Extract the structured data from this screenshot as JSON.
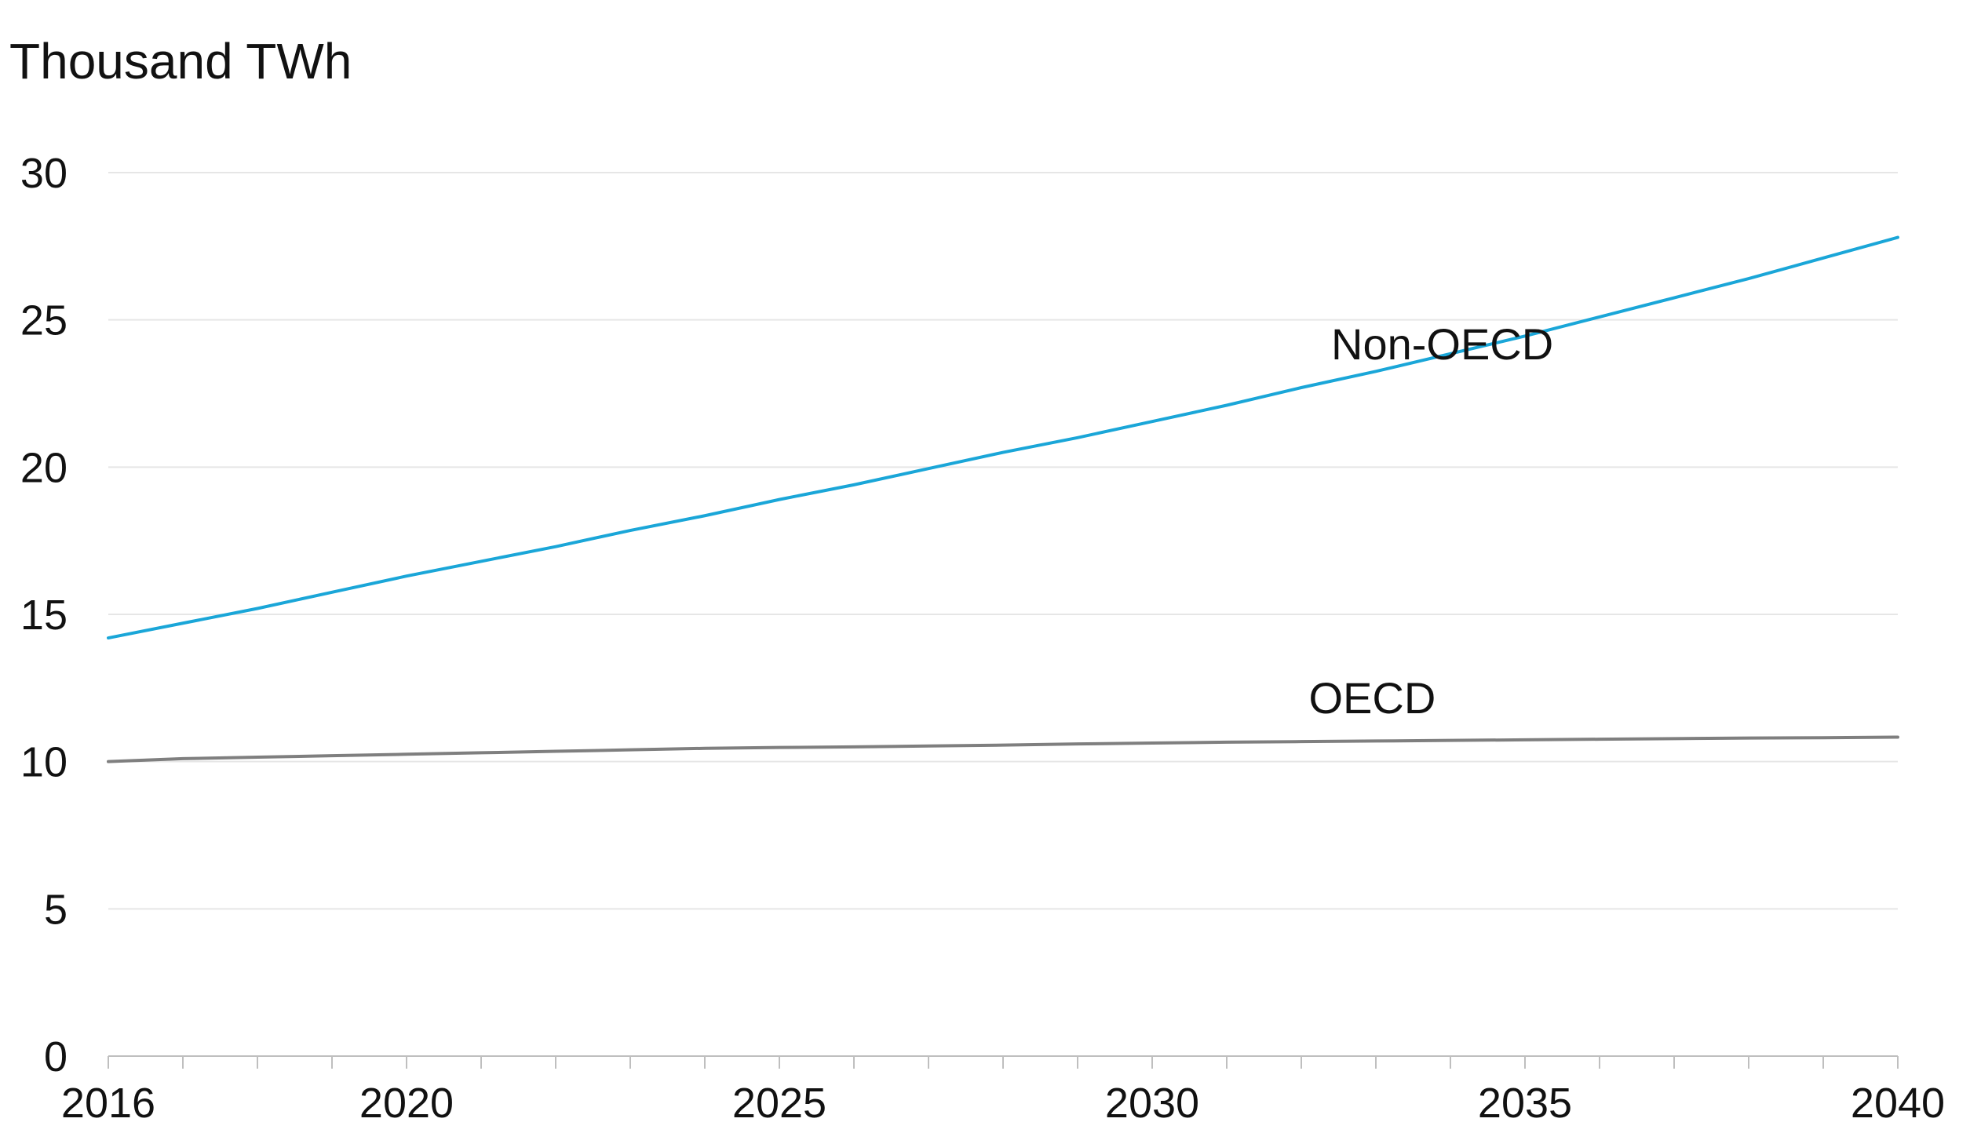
{
  "chart_data": {
    "type": "line",
    "title": "",
    "xlabel": "",
    "ylabel": "Thousand TWh",
    "x": [
      2016,
      2017,
      2018,
      2019,
      2020,
      2021,
      2022,
      2023,
      2024,
      2025,
      2026,
      2027,
      2028,
      2029,
      2030,
      2031,
      2032,
      2033,
      2034,
      2035,
      2036,
      2037,
      2038,
      2039,
      2040
    ],
    "xlim": [
      2016,
      2040
    ],
    "ylim": [
      0,
      30
    ],
    "x_ticks": [
      "2016",
      "2020",
      "2025",
      "2030",
      "2035",
      "2040"
    ],
    "y_ticks": [
      "0",
      "5",
      "10",
      "15",
      "20",
      "25",
      "30"
    ],
    "grid": "horizontal",
    "legend": "none",
    "series": [
      {
        "name": "Non-OECD",
        "color": "#1aa6d8",
        "values": [
          14.2,
          14.7,
          15.2,
          15.75,
          16.3,
          16.8,
          17.3,
          17.85,
          18.35,
          18.9,
          19.4,
          19.95,
          20.5,
          21.0,
          21.55,
          22.1,
          22.7,
          23.25,
          23.85,
          24.45,
          25.1,
          25.75,
          26.4,
          27.1,
          27.8
        ]
      },
      {
        "name": "OECD",
        "color": "#7f7f7f",
        "values": [
          10.0,
          10.1,
          10.15,
          10.2,
          10.25,
          10.3,
          10.35,
          10.4,
          10.45,
          10.48,
          10.5,
          10.53,
          10.56,
          10.6,
          10.63,
          10.66,
          10.68,
          10.7,
          10.72,
          10.74,
          10.76,
          10.78,
          10.8,
          10.81,
          10.83
        ]
      }
    ]
  }
}
